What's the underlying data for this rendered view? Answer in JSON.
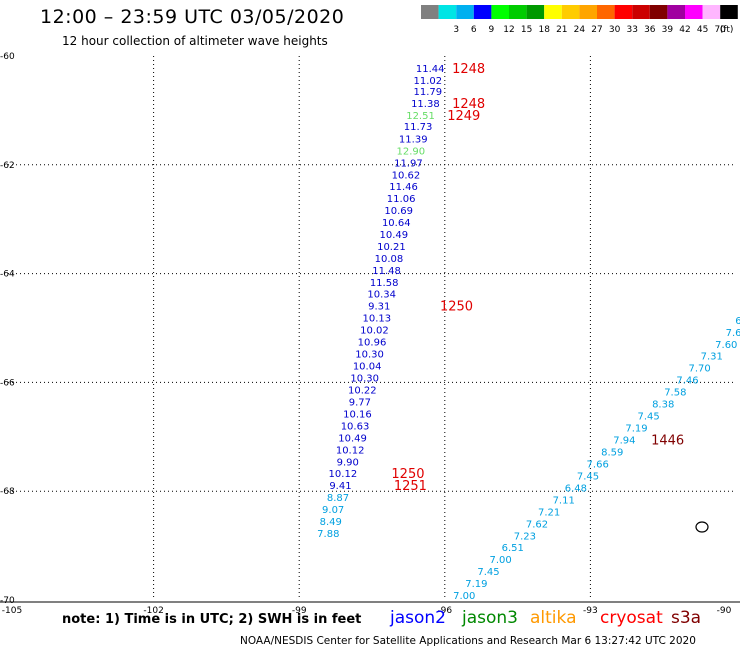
{
  "header": {
    "title": "12:00 – 23:59 UTC 03/05/2020",
    "subtitle": "12 hour collection of altimeter wave heights"
  },
  "legend": {
    "unit": "(ft)",
    "bins": [
      {
        "label": "",
        "color": "#808080"
      },
      {
        "label": "3",
        "color": "#00e5e5"
      },
      {
        "label": "6",
        "color": "#00b0f0"
      },
      {
        "label": "9",
        "color": "#0000ff"
      },
      {
        "label": "12",
        "color": "#00ff00"
      },
      {
        "label": "15",
        "color": "#00cc00"
      },
      {
        "label": "18",
        "color": "#009900"
      },
      {
        "label": "21",
        "color": "#ffff00"
      },
      {
        "label": "24",
        "color": "#ffcc00"
      },
      {
        "label": "27",
        "color": "#ffa500"
      },
      {
        "label": "30",
        "color": "#ff6600"
      },
      {
        "label": "33",
        "color": "#ff0000"
      },
      {
        "label": "36",
        "color": "#cc0000"
      },
      {
        "label": "39",
        "color": "#800000"
      },
      {
        "label": "42",
        "color": "#a000a0"
      },
      {
        "label": "45",
        "color": "#ff00ff"
      },
      {
        "label": "70",
        "color": "#ffb6ff"
      },
      {
        "label": "",
        "color": "#000000"
      }
    ]
  },
  "axes": {
    "lat_labels": [
      "-60",
      "-62",
      "-64",
      "-66",
      "-68",
      "-70"
    ],
    "lon_labels": [
      "-105",
      "-102",
      "-99",
      "-96",
      "-93",
      "-90"
    ],
    "lat_range": [
      -70,
      -60
    ],
    "lon_range": [
      -105,
      -90
    ],
    "gridlines": "dotted"
  },
  "colors": {
    "dark_blue": "#0000cc",
    "light_blue": "#00a0e0",
    "green": "#66dd66",
    "time_red": "#e00000",
    "time_darkred": "#800000"
  },
  "tracks": {
    "track1": [
      {
        "v": "11.44",
        "lon": -96.3,
        "lat": -60.22,
        "c": "dark_blue"
      },
      {
        "v": "11.02",
        "lon": -96.35,
        "lat": -60.44,
        "c": "dark_blue"
      },
      {
        "v": "11.79",
        "lon": -96.35,
        "lat": -60.64,
        "c": "dark_blue"
      },
      {
        "v": "11.38",
        "lon": -96.4,
        "lat": -60.86,
        "c": "dark_blue"
      },
      {
        "v": "12.51",
        "lon": -96.5,
        "lat": -61.08,
        "c": "green"
      },
      {
        "v": "11.73",
        "lon": -96.55,
        "lat": -61.29,
        "c": "dark_blue"
      },
      {
        "v": "11.39",
        "lon": -96.65,
        "lat": -61.52,
        "c": "dark_blue"
      },
      {
        "v": "12.90",
        "lon": -96.7,
        "lat": -61.74,
        "c": "green"
      },
      {
        "v": "11.97",
        "lon": -96.75,
        "lat": -61.96,
        "c": "dark_blue"
      },
      {
        "v": "10.62",
        "lon": -96.8,
        "lat": -62.18,
        "c": "dark_blue"
      },
      {
        "v": "11.46",
        "lon": -96.85,
        "lat": -62.39,
        "c": "dark_blue"
      },
      {
        "v": "11.06",
        "lon": -96.9,
        "lat": -62.61,
        "c": "dark_blue"
      },
      {
        "v": "10.69",
        "lon": -96.95,
        "lat": -62.83,
        "c": "dark_blue"
      },
      {
        "v": "10.64",
        "lon": -97.0,
        "lat": -63.05,
        "c": "dark_blue"
      },
      {
        "v": "10.49",
        "lon": -97.05,
        "lat": -63.27,
        "c": "dark_blue"
      },
      {
        "v": "10.21",
        "lon": -97.1,
        "lat": -63.49,
        "c": "dark_blue"
      },
      {
        "v": "10.08",
        "lon": -97.15,
        "lat": -63.71,
        "c": "dark_blue"
      },
      {
        "v": "11.48",
        "lon": -97.2,
        "lat": -63.93,
        "c": "dark_blue"
      },
      {
        "v": "11.58",
        "lon": -97.25,
        "lat": -64.15,
        "c": "dark_blue"
      },
      {
        "v": "10.34",
        "lon": -97.3,
        "lat": -64.37,
        "c": "dark_blue"
      },
      {
        "v": "9.31",
        "lon": -97.35,
        "lat": -64.59,
        "c": "dark_blue"
      },
      {
        "v": "10.13",
        "lon": -97.4,
        "lat": -64.81,
        "c": "dark_blue"
      },
      {
        "v": "10.02",
        "lon": -97.45,
        "lat": -65.03,
        "c": "dark_blue"
      },
      {
        "v": "10.96",
        "lon": -97.5,
        "lat": -65.25,
        "c": "dark_blue"
      },
      {
        "v": "10.30",
        "lon": -97.55,
        "lat": -65.47,
        "c": "dark_blue"
      },
      {
        "v": "10.04",
        "lon": -97.6,
        "lat": -65.69,
        "c": "dark_blue"
      },
      {
        "v": "10.30",
        "lon": -97.65,
        "lat": -65.91,
        "c": "dark_blue"
      },
      {
        "v": "10.22",
        "lon": -97.7,
        "lat": -66.13,
        "c": "dark_blue"
      },
      {
        "v": "9.77",
        "lon": -97.75,
        "lat": -66.35,
        "c": "dark_blue"
      },
      {
        "v": "10.16",
        "lon": -97.8,
        "lat": -66.57,
        "c": "dark_blue"
      },
      {
        "v": "10.63",
        "lon": -97.85,
        "lat": -66.79,
        "c": "dark_blue"
      },
      {
        "v": "10.49",
        "lon": -97.9,
        "lat": -67.01,
        "c": "dark_blue"
      },
      {
        "v": "10.12",
        "lon": -97.95,
        "lat": -67.23,
        "c": "dark_blue"
      },
      {
        "v": "9.90",
        "lon": -98.0,
        "lat": -67.45,
        "c": "dark_blue"
      },
      {
        "v": "10.12",
        "lon": -98.1,
        "lat": -67.67,
        "c": "dark_blue"
      },
      {
        "v": "9.41",
        "lon": -98.15,
        "lat": -67.89,
        "c": "dark_blue"
      },
      {
        "v": "8.87",
        "lon": -98.2,
        "lat": -68.11,
        "c": "light_blue"
      },
      {
        "v": "9.07",
        "lon": -98.3,
        "lat": -68.33,
        "c": "light_blue"
      },
      {
        "v": "8.49",
        "lon": -98.35,
        "lat": -68.55,
        "c": "light_blue"
      },
      {
        "v": "7.88",
        "lon": -98.4,
        "lat": -68.77,
        "c": "light_blue"
      }
    ],
    "track2": [
      {
        "v": "6",
        "lon": -89.95,
        "lat": -64.85,
        "c": "light_blue"
      },
      {
        "v": "7.6",
        "lon": -90.05,
        "lat": -65.07,
        "c": "light_blue"
      },
      {
        "v": "7.60",
        "lon": -90.2,
        "lat": -65.29,
        "c": "light_blue"
      },
      {
        "v": "7.31",
        "lon": -90.5,
        "lat": -65.51,
        "c": "light_blue"
      },
      {
        "v": "7.70",
        "lon": -90.75,
        "lat": -65.73,
        "c": "light_blue"
      },
      {
        "v": "7.46",
        "lon": -91.0,
        "lat": -65.95,
        "c": "light_blue"
      },
      {
        "v": "7.58",
        "lon": -91.25,
        "lat": -66.17,
        "c": "light_blue"
      },
      {
        "v": "8.38",
        "lon": -91.5,
        "lat": -66.39,
        "c": "light_blue"
      },
      {
        "v": "7.45",
        "lon": -91.8,
        "lat": -66.61,
        "c": "light_blue"
      },
      {
        "v": "7.19",
        "lon": -92.05,
        "lat": -66.83,
        "c": "light_blue"
      },
      {
        "v": "7.94",
        "lon": -92.3,
        "lat": -67.05,
        "c": "light_blue"
      },
      {
        "v": "8.59",
        "lon": -92.55,
        "lat": -67.27,
        "c": "light_blue"
      },
      {
        "v": "7.66",
        "lon": -92.85,
        "lat": -67.49,
        "c": "light_blue"
      },
      {
        "v": "7.45",
        "lon": -93.05,
        "lat": -67.71,
        "c": "light_blue"
      },
      {
        "v": "6.48",
        "lon": -93.3,
        "lat": -67.93,
        "c": "light_blue"
      },
      {
        "v": "7.11",
        "lon": -93.55,
        "lat": -68.15,
        "c": "light_blue"
      },
      {
        "v": "7.21",
        "lon": -93.85,
        "lat": -68.37,
        "c": "light_blue"
      },
      {
        "v": "7.62",
        "lon": -94.1,
        "lat": -68.59,
        "c": "light_blue"
      },
      {
        "v": "7.23",
        "lon": -94.35,
        "lat": -68.81,
        "c": "light_blue"
      },
      {
        "v": "6.51",
        "lon": -94.6,
        "lat": -69.03,
        "c": "light_blue"
      },
      {
        "v": "7.00",
        "lon": -94.85,
        "lat": -69.25,
        "c": "light_blue"
      },
      {
        "v": "7.45",
        "lon": -95.1,
        "lat": -69.47,
        "c": "light_blue"
      },
      {
        "v": "7.19",
        "lon": -95.35,
        "lat": -69.69,
        "c": "light_blue"
      },
      {
        "v": "7.00",
        "lon": -95.6,
        "lat": -69.91,
        "c": "light_blue"
      }
    ]
  },
  "time_labels": [
    {
      "t": "1248",
      "lon": -95.85,
      "lat": -60.22,
      "c": "time_red"
    },
    {
      "t": "1248",
      "lon": -95.85,
      "lat": -60.86,
      "c": "time_red"
    },
    {
      "t": "1249",
      "lon": -95.95,
      "lat": -61.08,
      "c": "time_red"
    },
    {
      "t": "1250",
      "lon": -96.1,
      "lat": -64.59,
      "c": "time_red"
    },
    {
      "t": "1250",
      "lon": -97.1,
      "lat": -67.67,
      "c": "time_red"
    },
    {
      "t": "1251",
      "lon": -97.05,
      "lat": -67.89,
      "c": "time_red"
    },
    {
      "t": "1446",
      "lon": -91.75,
      "lat": -67.05,
      "c": "time_darkred"
    }
  ],
  "footer": {
    "note": "note:  1) Time is in UTC;  2) SWH is in feet",
    "satellites": [
      {
        "name": "jason2",
        "color": "#0000ff"
      },
      {
        "name": "jason3",
        "color": "#008800"
      },
      {
        "name": "altika",
        "color": "#ff9900"
      },
      {
        "name": "cryosat",
        "color": "#ff0000"
      },
      {
        "name": "s3a",
        "color": "#800000"
      }
    ],
    "credit": "NOAA/NESDIS Center for Satellite Applications and Research     Mar  6 13:27:42 UTC 2020"
  }
}
